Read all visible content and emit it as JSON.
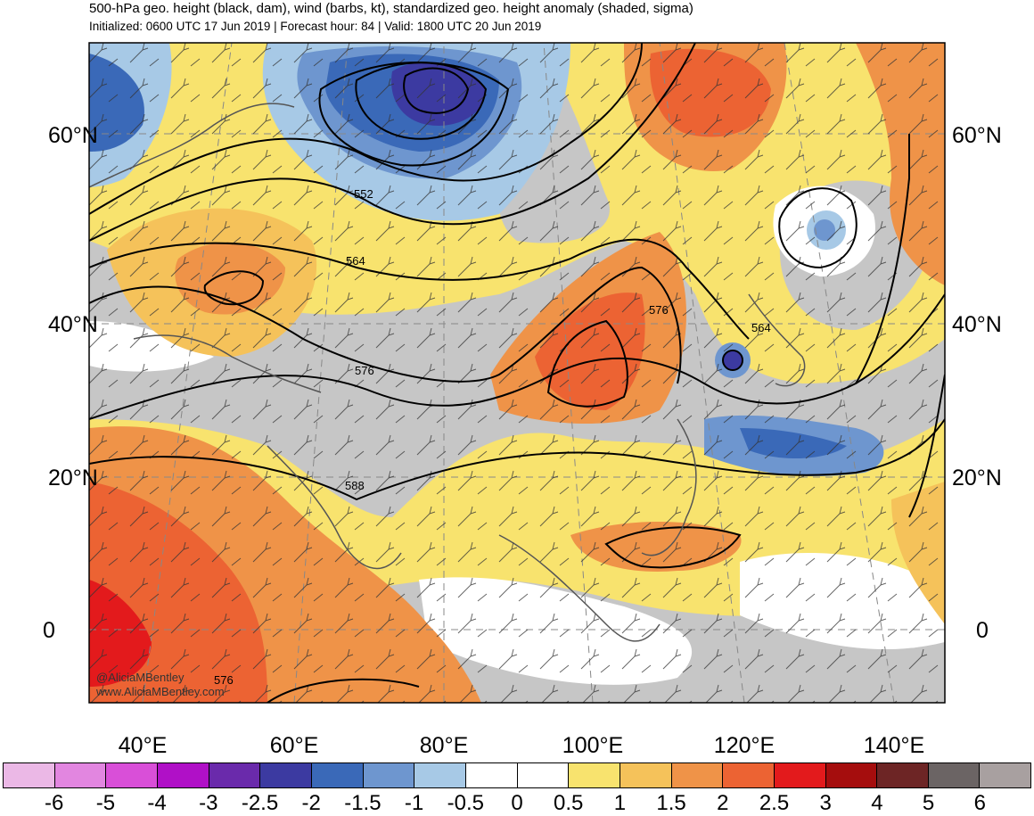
{
  "header": {
    "title": "500-hPa geo. height (black, dam), wind (barbs, kt), standardized geo. height anomaly (shaded, sigma)",
    "subtitle": "Initialized: 0600 UTC 17 Jun 2019 | Forecast hour: 84 | Valid: 1800 UTC 20 Jun 2019"
  },
  "axes": {
    "lat_labels_left": [
      "60°N",
      "40°N",
      "20°N",
      "0"
    ],
    "lat_labels_right": [
      "60°N",
      "40°N",
      "20°N",
      "0"
    ],
    "lon_labels": [
      "40°E",
      "60°E",
      "80°E",
      "100°E",
      "120°E",
      "140°E"
    ]
  },
  "contour_labels": [
    "552",
    "564",
    "576",
    "564",
    "576",
    "588",
    "576"
  ],
  "credits": [
    "@AliciaMBentley",
    "www.AliciaMBentley.com"
  ],
  "colorbar": {
    "labels": [
      "-6",
      "-5",
      "-4",
      "-3",
      "-2.5",
      "-2",
      "-1.5",
      "-1",
      "-0.5",
      "0",
      "0.5",
      "1",
      "1.5",
      "2",
      "2.5",
      "3",
      "4",
      "5",
      "6"
    ],
    "colors": [
      "#ebb8e6",
      "#e286e0",
      "#d94fd8",
      "#b010c7",
      "#6a2aab",
      "#3c3aa1",
      "#3a69b8",
      "#6e96cf",
      "#a7c9e6",
      "#ffffff",
      "#ffffff",
      "#f8e36e",
      "#f5c25a",
      "#ef9348",
      "#ec6333",
      "#e31a1c",
      "#a50d0d",
      "#6d2525",
      "#6b6464",
      "#a8a0a0"
    ]
  }
}
